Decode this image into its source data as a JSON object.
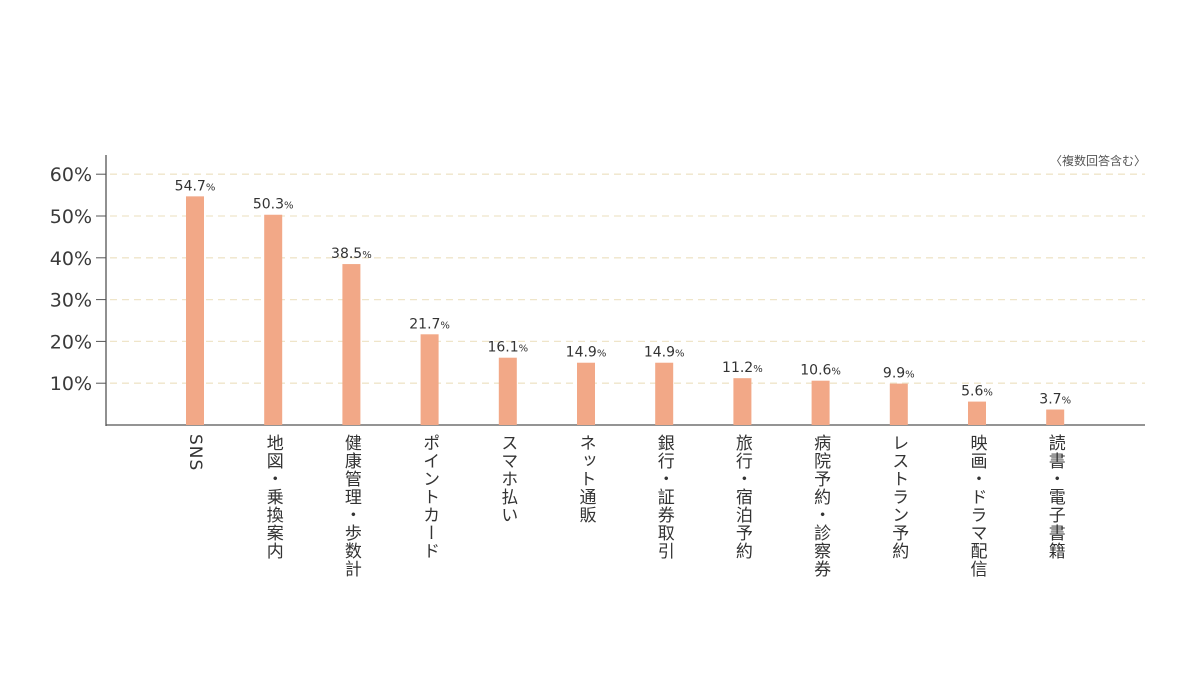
{
  "chart_data": {
    "type": "bar",
    "title": "",
    "note": "〈複数回答含む〉",
    "xlabel": "",
    "ylabel": "",
    "ylim": [
      0,
      60
    ],
    "yticks": [
      "10%",
      "20%",
      "30%",
      "40%",
      "50%",
      "60%"
    ],
    "ytick_values": [
      10,
      20,
      30,
      40,
      50,
      60
    ],
    "grid": "horizontal dashed",
    "bar_color": "#f2a887",
    "grid_color": "#efe5c9",
    "categories": [
      "SNS",
      "地図・乗換案内",
      "健康管理・歩数計",
      "ポイントカード",
      "スマホ払い",
      "ネット通販",
      "銀行・証券取引",
      "旅行・宿泊予約",
      "病院予約・診察券",
      "レストラン予約",
      "映画・ドラマ配信",
      "読書・電子書籍"
    ],
    "values": [
      54.7,
      50.3,
      38.5,
      21.7,
      16.1,
      14.9,
      14.9,
      11.2,
      10.6,
      9.9,
      5.6,
      3.7
    ],
    "labels": [
      "54.7%",
      "50.3%",
      "38.5%",
      "21.7%",
      "16.1%",
      "14.9%",
      "14.9%",
      "11.2%",
      "10.6%",
      "9.9%",
      "5.6%",
      "3.7%"
    ]
  }
}
